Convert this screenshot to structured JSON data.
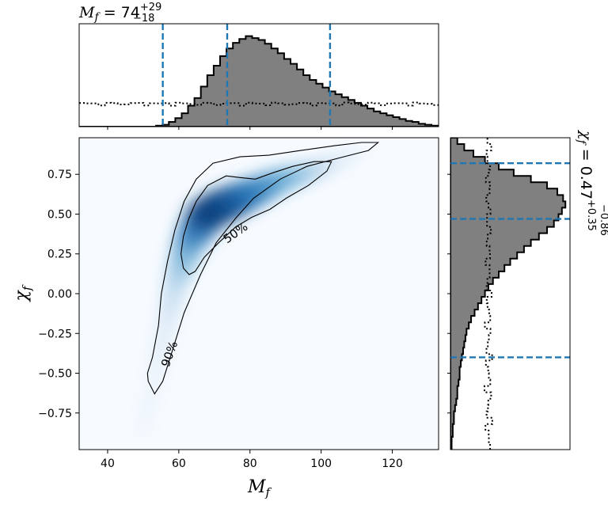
{
  "chart_data": {
    "type": "heatmap",
    "main": {
      "xlabel_main": "M",
      "xlabel_sub": "f",
      "ylabel_main": "χ",
      "ylabel_sub": "f",
      "xlim": [
        32,
        133
      ],
      "ylim": [
        -0.98,
        0.98
      ],
      "xticks": [
        40,
        60,
        80,
        100,
        120
      ],
      "yticks": [
        -0.75,
        -0.5,
        -0.25,
        0.0,
        0.25,
        0.5,
        0.75
      ],
      "ytick_labels": [
        "−0.75",
        "−0.50",
        "−0.25",
        "0.00",
        "0.25",
        "0.50",
        "0.75"
      ],
      "colormap": "Blues",
      "density_ridge": [
        {
          "x": 50,
          "y": -0.85,
          "w": 0.08
        },
        {
          "x": 53,
          "y": -0.55,
          "w": 0.12
        },
        {
          "x": 56,
          "y": -0.25,
          "w": 0.2
        },
        {
          "x": 59,
          "y": 0.05,
          "w": 0.35
        },
        {
          "x": 63,
          "y": 0.32,
          "w": 0.65
        },
        {
          "x": 68,
          "y": 0.5,
          "w": 0.95
        },
        {
          "x": 72,
          "y": 0.55,
          "w": 1.0
        },
        {
          "x": 77,
          "y": 0.6,
          "w": 0.9
        },
        {
          "x": 82,
          "y": 0.65,
          "w": 0.75
        },
        {
          "x": 88,
          "y": 0.71,
          "w": 0.6
        },
        {
          "x": 94,
          "y": 0.75,
          "w": 0.45
        },
        {
          "x": 100,
          "y": 0.79,
          "w": 0.3
        },
        {
          "x": 106,
          "y": 0.85,
          "w": 0.15
        },
        {
          "x": 112,
          "y": 0.9,
          "w": 0.07
        }
      ],
      "contours": [
        {
          "label": "90%",
          "label_pos": [
            57.5,
            -0.38
          ],
          "label_rotation": -70,
          "points": [
            [
              53.2,
              -0.63
            ],
            [
              51.4,
              -0.55
            ],
            [
              51.2,
              -0.5
            ],
            [
              52.6,
              -0.4
            ],
            [
              54.3,
              -0.2
            ],
            [
              55.1,
              0.0
            ],
            [
              56.8,
              0.2
            ],
            [
              58.9,
              0.4
            ],
            [
              61.5,
              0.58
            ],
            [
              64.9,
              0.72
            ],
            [
              69.6,
              0.82
            ],
            [
              77.2,
              0.86
            ],
            [
              85.3,
              0.87
            ],
            [
              94.3,
              0.9
            ],
            [
              103.8,
              0.93
            ],
            [
              111.3,
              0.95
            ],
            [
              116.0,
              0.95
            ],
            [
              113.3,
              0.9
            ],
            [
              106.3,
              0.86
            ],
            [
              96.0,
              0.8
            ],
            [
              88.5,
              0.72
            ],
            [
              81.0,
              0.6
            ],
            [
              76.2,
              0.48
            ],
            [
              70.5,
              0.32
            ],
            [
              66.1,
              0.12
            ],
            [
              61.5,
              -0.12
            ],
            [
              58.3,
              -0.35
            ],
            [
              55.5,
              -0.55
            ],
            [
              53.2,
              -0.63
            ]
          ]
        },
        {
          "label": "50%",
          "label_pos": [
            76,
            0.38
          ],
          "label_rotation": -35,
          "points": [
            [
              62.9,
              0.12
            ],
            [
              61.3,
              0.16
            ],
            [
              60.6,
              0.25
            ],
            [
              61.3,
              0.36
            ],
            [
              62.8,
              0.47
            ],
            [
              64.9,
              0.58
            ],
            [
              68.1,
              0.68
            ],
            [
              73.3,
              0.74
            ],
            [
              77.2,
              0.73
            ],
            [
              81.5,
              0.72
            ],
            [
              86.5,
              0.76
            ],
            [
              92.0,
              0.8
            ],
            [
              98.0,
              0.83
            ],
            [
              102.9,
              0.83
            ],
            [
              101.6,
              0.77
            ],
            [
              96.4,
              0.68
            ],
            [
              90.2,
              0.6
            ],
            [
              85.6,
              0.53
            ],
            [
              80.5,
              0.48
            ],
            [
              76.0,
              0.42
            ],
            [
              71.2,
              0.32
            ],
            [
              67.2,
              0.23
            ],
            [
              64.6,
              0.14
            ],
            [
              62.9,
              0.12
            ]
          ]
        }
      ]
    },
    "top_marginal": {
      "parameter": "M",
      "sub": "f",
      "median": "74",
      "plus": "+29",
      "minus": "−18",
      "bin_edges_start": 32,
      "bin_width": 1.8,
      "counts": [
        0,
        0,
        0,
        0,
        0,
        0,
        0,
        0,
        0,
        0,
        0,
        0,
        0.01,
        0.02,
        0.05,
        0.09,
        0.14,
        0.22,
        0.3,
        0.42,
        0.54,
        0.64,
        0.74,
        0.82,
        0.88,
        0.92,
        0.95,
        0.93,
        0.91,
        0.87,
        0.82,
        0.77,
        0.71,
        0.66,
        0.6,
        0.54,
        0.49,
        0.45,
        0.41,
        0.37,
        0.34,
        0.31,
        0.28,
        0.25,
        0.22,
        0.19,
        0.16,
        0.14,
        0.12,
        0.1,
        0.08,
        0.06,
        0.05,
        0.03,
        0.02,
        0.01
      ],
      "prior_level": 0.24,
      "ymax": 1.0,
      "quantile_lines": [
        55.5,
        73.6,
        102.5
      ]
    },
    "right_marginal": {
      "parameter": "χ",
      "sub": "f",
      "median": "0.47",
      "plus": "+0.35",
      "minus": "−0.86",
      "bin_edges_start": -0.98,
      "bin_width": 0.04,
      "counts": [
        0.01,
        0.01,
        0.02,
        0.02,
        0.03,
        0.03,
        0.04,
        0.05,
        0.06,
        0.06,
        0.07,
        0.08,
        0.08,
        0.09,
        0.1,
        0.11,
        0.12,
        0.13,
        0.14,
        0.16,
        0.18,
        0.21,
        0.24,
        0.27,
        0.3,
        0.33,
        0.37,
        0.42,
        0.47,
        0.52,
        0.58,
        0.64,
        0.7,
        0.77,
        0.84,
        0.9,
        0.94,
        0.97,
        1.0,
        0.98,
        0.93,
        0.84,
        0.7,
        0.55,
        0.42,
        0.3,
        0.2,
        0.12,
        0.06
      ],
      "prior_level": 0.33,
      "xmax": 1.0,
      "quantile_lines": [
        0.82,
        0.47,
        -0.4
      ]
    }
  }
}
